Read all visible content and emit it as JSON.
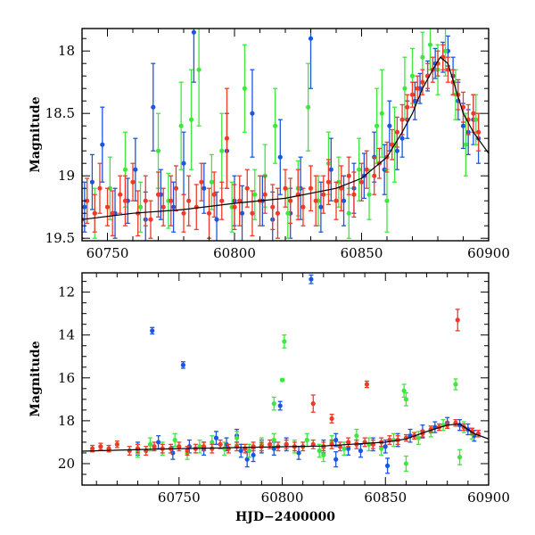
{
  "colors": {
    "blue": "#1a56e0",
    "green": "#3ee63e",
    "red": "#f03a28",
    "model": "#000000"
  },
  "chart_data": [
    {
      "type": "scatter",
      "panel": "top",
      "title": "",
      "xlabel": "",
      "ylabel": "Magnitude",
      "xlim": [
        60740,
        60900
      ],
      "ylim": [
        19.52,
        17.82
      ],
      "y_inverted": true,
      "xticks": [
        60750,
        60800,
        60850,
        60900
      ],
      "xtick_labels": [
        "60750",
        "60800",
        "60850",
        "60900"
      ],
      "yticks": [
        18,
        18.5,
        19,
        19.5
      ],
      "ytick_labels": [
        "18",
        "18.5",
        "19",
        "19.5"
      ],
      "error_bars": true,
      "grid": false,
      "legend": "none",
      "series": [
        {
          "color": "blue",
          "x": [
            60741,
            60744,
            60748,
            60753,
            60758,
            60761,
            60765,
            60768,
            60771,
            60776,
            60780,
            60784,
            60788,
            60793,
            60797,
            60800,
            60803,
            60807,
            60811,
            60815,
            60818,
            60822,
            60826,
            60830,
            60834,
            60838,
            60843,
            60847,
            60851,
            60855,
            60859,
            60861,
            60864,
            60866,
            60868,
            60871,
            60873,
            60876,
            60879,
            60882,
            60884,
            60886,
            60888,
            60890,
            60892,
            60894,
            60896
          ],
          "y": [
            19.25,
            19.05,
            18.75,
            19.3,
            19.2,
            18.95,
            19.35,
            18.45,
            19.15,
            19.25,
            18.9,
            17.85,
            19.1,
            19.35,
            18.8,
            19.2,
            19.3,
            18.5,
            19.2,
            19.35,
            18.85,
            19.3,
            19.1,
            17.9,
            19.25,
            18.95,
            19.2,
            19.1,
            19.0,
            18.85,
            18.95,
            18.6,
            18.8,
            18.7,
            18.55,
            18.4,
            18.3,
            18.2,
            18.1,
            18.05,
            18.0,
            18.2,
            18.4,
            18.6,
            18.65,
            18.55,
            18.7
          ],
          "err": [
            0.2,
            0.22,
            0.3,
            0.2,
            0.18,
            0.25,
            0.22,
            0.35,
            0.2,
            0.2,
            0.25,
            0.4,
            0.2,
            0.22,
            0.3,
            0.2,
            0.22,
            0.35,
            0.2,
            0.22,
            0.3,
            0.2,
            0.25,
            0.4,
            0.2,
            0.25,
            0.2,
            0.2,
            0.18,
            0.2,
            0.2,
            0.2,
            0.15,
            0.15,
            0.15,
            0.15,
            0.12,
            0.12,
            0.12,
            0.12,
            0.12,
            0.15,
            0.15,
            0.18,
            0.18,
            0.2,
            0.2
          ]
        },
        {
          "color": "green",
          "x": [
            60745,
            60751,
            60757,
            60763,
            60770,
            60774,
            60779,
            60783,
            60786,
            60791,
            60795,
            60799,
            60804,
            60808,
            60812,
            60816,
            60821,
            60825,
            60829,
            60833,
            60837,
            60841,
            60845,
            60849,
            60853,
            60856,
            60858,
            60860,
            60863,
            60867,
            60870,
            60874,
            60877,
            60880,
            60883,
            60887,
            60891,
            60895
          ],
          "y": [
            19.3,
            19.1,
            18.95,
            19.25,
            18.8,
            19.2,
            18.6,
            18.55,
            18.15,
            19.05,
            18.8,
            19.25,
            18.3,
            19.15,
            19.0,
            18.6,
            19.3,
            19.1,
            18.45,
            19.2,
            18.9,
            19.05,
            19.3,
            18.95,
            19.15,
            18.6,
            18.5,
            19.2,
            18.75,
            18.3,
            18.2,
            18.05,
            17.95,
            18.15,
            18.0,
            18.35,
            18.75,
            18.55
          ],
          "err": [
            0.2,
            0.25,
            0.3,
            0.2,
            0.3,
            0.22,
            0.35,
            0.4,
            0.45,
            0.22,
            0.3,
            0.2,
            0.35,
            0.2,
            0.25,
            0.3,
            0.2,
            0.22,
            0.35,
            0.2,
            0.25,
            0.2,
            0.2,
            0.25,
            0.2,
            0.3,
            0.35,
            0.25,
            0.3,
            0.25,
            0.22,
            0.2,
            0.2,
            0.2,
            0.2,
            0.2,
            0.25,
            0.2
          ]
        },
        {
          "color": "red",
          "x": [
            60740,
            60742,
            60745,
            60747,
            60750,
            60752,
            60755,
            60757,
            60760,
            60762,
            60765,
            60767,
            60770,
            60772,
            60775,
            60777,
            60780,
            60782,
            60785,
            60787,
            60790,
            60792,
            60795,
            60797,
            60800,
            60802,
            60805,
            60807,
            60810,
            60812,
            60815,
            60817,
            60820,
            60822,
            60825,
            60827,
            60830,
            60832,
            60835,
            60837,
            60840,
            60842,
            60845,
            60847,
            60850,
            60852,
            60855,
            60857,
            60860,
            60862,
            60864,
            60866,
            60868,
            60870,
            60872,
            60874,
            60876,
            60878,
            60880,
            60882,
            60884,
            60886,
            60888,
            60890,
            60892,
            60894,
            60896
          ],
          "y": [
            19.35,
            19.2,
            19.3,
            19.1,
            19.25,
            19.3,
            19.15,
            19.2,
            19.05,
            19.3,
            19.2,
            19.35,
            19.15,
            19.25,
            19.2,
            19.1,
            19.3,
            19.2,
            19.25,
            19.05,
            19.3,
            19.15,
            19.2,
            18.7,
            19.25,
            19.2,
            19.1,
            19.3,
            19.2,
            19.15,
            19.25,
            19.3,
            19.1,
            19.2,
            19.15,
            19.25,
            19.1,
            19.2,
            19.15,
            19.05,
            19.2,
            19.1,
            19.0,
            19.15,
            19.05,
            18.95,
            19.0,
            18.9,
            18.85,
            18.75,
            18.65,
            18.55,
            18.45,
            18.35,
            18.3,
            18.25,
            18.2,
            18.15,
            18.1,
            18.05,
            18.15,
            18.25,
            18.35,
            18.45,
            18.55,
            18.5,
            18.65
          ],
          "err": [
            0.15,
            0.18,
            0.15,
            0.2,
            0.15,
            0.18,
            0.15,
            0.2,
            0.15,
            0.18,
            0.2,
            0.15,
            0.18,
            0.15,
            0.2,
            0.18,
            0.15,
            0.2,
            0.18,
            0.15,
            0.2,
            0.18,
            0.15,
            0.4,
            0.18,
            0.2,
            0.15,
            0.18,
            0.2,
            0.15,
            0.18,
            0.2,
            0.15,
            0.18,
            0.2,
            0.15,
            0.18,
            0.2,
            0.15,
            0.18,
            0.15,
            0.18,
            0.15,
            0.18,
            0.15,
            0.15,
            0.15,
            0.12,
            0.12,
            0.12,
            0.12,
            0.12,
            0.1,
            0.1,
            0.1,
            0.1,
            0.1,
            0.1,
            0.1,
            0.1,
            0.1,
            0.1,
            0.12,
            0.12,
            0.12,
            0.15,
            0.15
          ]
        },
        {
          "name": "",
          "color": "model",
          "line": true,
          "x": [
            60740,
            60760,
            60780,
            60800,
            60820,
            60840,
            60850,
            60860,
            60866,
            60870,
            60874,
            60878,
            60881,
            60884,
            60887,
            60890,
            60894,
            60900
          ],
          "y": [
            19.35,
            19.3,
            19.27,
            19.22,
            19.18,
            19.1,
            19.02,
            18.85,
            18.65,
            18.5,
            18.3,
            18.15,
            18.05,
            18.1,
            18.3,
            18.5,
            18.65,
            18.82
          ]
        }
      ]
    },
    {
      "type": "scatter",
      "panel": "bottom",
      "title": "",
      "xlabel": "HJD−2400000",
      "ylabel": "Magnitude",
      "xlim": [
        60703,
        60900
      ],
      "ylim": [
        21.0,
        11.1
      ],
      "y_inverted": true,
      "xticks": [
        60750,
        60800,
        60850,
        60900
      ],
      "xtick_labels": [
        "60750",
        "60800",
        "60850",
        "60900"
      ],
      "yticks": [
        12,
        14,
        16,
        18,
        20
      ],
      "ytick_labels": [
        "12",
        "14",
        "16",
        "18",
        "20"
      ],
      "error_bars": true,
      "grid": false,
      "legend": "none",
      "series": [
        {
          "color": "blue",
          "x": [
            60737,
            60752,
            60730,
            60740,
            60747,
            60755,
            60762,
            60768,
            60773,
            60780,
            60786,
            60790,
            60796,
            60802,
            60808,
            60814,
            60820,
            60826,
            60832,
            60838,
            60844,
            60850,
            60856,
            60862,
            60868,
            60874,
            60880,
            60886,
            60890,
            60893,
            60778,
            60783,
            60799,
            60826,
            60851
          ],
          "y": [
            13.8,
            15.4,
            19.3,
            19.0,
            19.5,
            19.2,
            19.3,
            18.8,
            19.1,
            19.4,
            19.6,
            19.2,
            19.3,
            19.1,
            19.5,
            11.4,
            19.2,
            18.9,
            19.3,
            19.4,
            19.1,
            19.2,
            18.9,
            18.7,
            18.5,
            18.3,
            18.1,
            18.2,
            18.4,
            18.7,
            18.7,
            19.8,
            17.3,
            19.8,
            20.1
          ],
          "err": [
            0.15,
            0.15,
            0.3,
            0.3,
            0.3,
            0.3,
            0.3,
            0.3,
            0.3,
            0.3,
            0.3,
            0.3,
            0.3,
            0.3,
            0.3,
            0.2,
            0.3,
            0.3,
            0.3,
            0.3,
            0.3,
            0.3,
            0.3,
            0.3,
            0.3,
            0.25,
            0.25,
            0.25,
            0.25,
            0.25,
            0.3,
            0.35,
            0.2,
            0.35,
            0.35
          ]
        },
        {
          "color": "green",
          "x": [
            60730,
            60736,
            60742,
            60748,
            60754,
            60760,
            60766,
            60772,
            60778,
            60784,
            60790,
            60796,
            60801,
            60796,
            60800,
            60806,
            60812,
            60818,
            60824,
            60830,
            60836,
            60842,
            60848,
            60854,
            60860,
            60866,
            60872,
            60878,
            60884,
            60888,
            60892,
            60820,
            60859,
            60886,
            60860
          ],
          "y": [
            19.4,
            19.1,
            19.3,
            18.9,
            19.5,
            19.2,
            19.0,
            19.3,
            18.8,
            19.4,
            19.1,
            18.9,
            14.3,
            17.2,
            16.1,
            19.2,
            18.9,
            19.4,
            19.0,
            19.3,
            18.7,
            19.1,
            19.3,
            18.9,
            17.0,
            18.8,
            18.5,
            18.2,
            16.3,
            18.3,
            18.6,
            19.6,
            16.6,
            19.7,
            20.0
          ],
          "err": [
            0.3,
            0.3,
            0.3,
            0.3,
            0.3,
            0.3,
            0.3,
            0.3,
            0.3,
            0.3,
            0.3,
            0.3,
            0.3,
            0.3,
            0.05,
            0.3,
            0.3,
            0.3,
            0.3,
            0.3,
            0.3,
            0.3,
            0.3,
            0.3,
            0.3,
            0.3,
            0.25,
            0.25,
            0.25,
            0.25,
            0.25,
            0.3,
            0.3,
            0.35,
            0.35
          ]
        },
        {
          "color": "red",
          "x": [
            60708,
            60712,
            60716,
            60720,
            60726,
            60730,
            60734,
            60738,
            60742,
            60746,
            60750,
            60754,
            60758,
            60762,
            60766,
            60770,
            60774,
            60778,
            60782,
            60786,
            60790,
            60794,
            60798,
            60802,
            60806,
            60810,
            60815,
            60820,
            60824,
            60828,
            60832,
            60836,
            60840,
            60844,
            60848,
            60852,
            60856,
            60860,
            60864,
            60868,
            60872,
            60876,
            60880,
            60884,
            60888,
            60892,
            60895,
            60815,
            60841,
            60885,
            60824
          ],
          "y": [
            19.3,
            19.2,
            19.3,
            19.1,
            19.4,
            19.3,
            19.4,
            19.2,
            19.3,
            19.3,
            19.2,
            19.4,
            19.3,
            19.2,
            19.3,
            19.1,
            19.3,
            19.2,
            19.3,
            19.2,
            19.2,
            19.1,
            19.2,
            19.1,
            19.2,
            19.2,
            19.1,
            19.2,
            19.1,
            19.2,
            19.0,
            19.1,
            19.0,
            19.1,
            19.0,
            18.9,
            18.9,
            18.8,
            18.7,
            18.6,
            18.4,
            18.3,
            18.2,
            18.1,
            18.3,
            18.5,
            18.6,
            17.2,
            16.3,
            13.3,
            17.9
          ],
          "err": [
            0.15,
            0.15,
            0.15,
            0.15,
            0.2,
            0.2,
            0.2,
            0.2,
            0.2,
            0.2,
            0.2,
            0.2,
            0.2,
            0.2,
            0.2,
            0.2,
            0.2,
            0.2,
            0.2,
            0.2,
            0.2,
            0.2,
            0.2,
            0.2,
            0.2,
            0.2,
            0.2,
            0.2,
            0.2,
            0.2,
            0.2,
            0.2,
            0.2,
            0.2,
            0.2,
            0.2,
            0.2,
            0.15,
            0.15,
            0.15,
            0.15,
            0.15,
            0.15,
            0.15,
            0.15,
            0.15,
            0.15,
            0.4,
            0.15,
            0.5,
            0.2
          ]
        },
        {
          "name": "",
          "color": "model",
          "line": true,
          "x": [
            60703,
            60740,
            60780,
            60820,
            60850,
            60860,
            60870,
            60880,
            60886,
            60893,
            60900
          ],
          "y": [
            19.42,
            19.32,
            19.25,
            19.18,
            19.0,
            18.85,
            18.5,
            18.2,
            18.15,
            18.6,
            18.85
          ]
        }
      ]
    }
  ]
}
